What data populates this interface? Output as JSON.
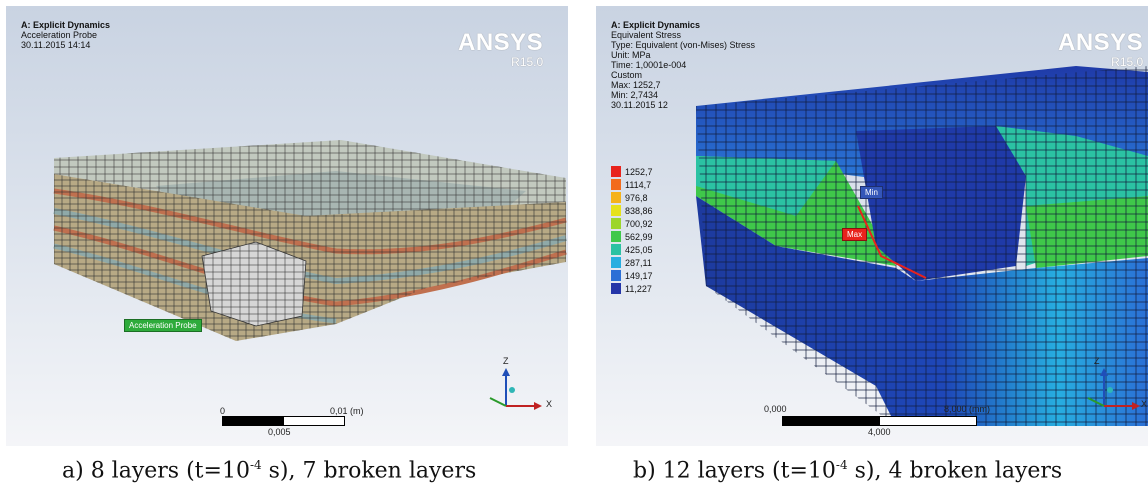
{
  "panel_a": {
    "title": "A: Explicit Dynamics",
    "lines": [
      "Acceleration Probe",
      "30.11.2015 14:14"
    ],
    "logo": "ANSYS",
    "version": "R15.0",
    "probe_label": "Acceleration Probe",
    "scale": {
      "left": "0",
      "mid": "0,005",
      "right": "0,01 (m)"
    },
    "axes": {
      "z": "Z",
      "x": "X"
    }
  },
  "panel_b": {
    "title": "A: Explicit Dynamics",
    "lines": [
      "Equivalent Stress",
      "Type: Equivalent (von-Mises) Stress",
      "Unit: MPa",
      "Time: 1,0001e-004",
      "Custom",
      "Max: 1252,7",
      "Min: 2,7434",
      "30.11.2015 12"
    ],
    "logo": "ANSYS",
    "version": "R15.0",
    "legend": [
      {
        "label": "1252,7",
        "color": "#e8231c"
      },
      {
        "label": "1114,7",
        "color": "#f26b1c"
      },
      {
        "label": "976,8",
        "color": "#f5b21a"
      },
      {
        "label": "838,86",
        "color": "#e6e21a"
      },
      {
        "label": "700,92",
        "color": "#9cd62b"
      },
      {
        "label": "562,99",
        "color": "#3fc84a"
      },
      {
        "label": "425,05",
        "color": "#2bc2a3"
      },
      {
        "label": "287,11",
        "color": "#27aee0"
      },
      {
        "label": "149,17",
        "color": "#2b6fd6"
      },
      {
        "label": "11,227",
        "color": "#2435a8"
      }
    ],
    "min_tag": "Min",
    "max_tag": "Max",
    "scale": {
      "left": "0,000",
      "mid": "4,000",
      "right": "8,000 (mm)"
    },
    "axes": {
      "z": "Z",
      "x": "X"
    }
  },
  "captions": {
    "a_prefix": "a) 8 layers (t=10",
    "a_exp": "-4",
    "a_suffix": " s), 7 broken  layers",
    "b_prefix": "b) 12 layers (t=10",
    "b_exp": "-4",
    "b_suffix": " s), 4 broken layers"
  }
}
